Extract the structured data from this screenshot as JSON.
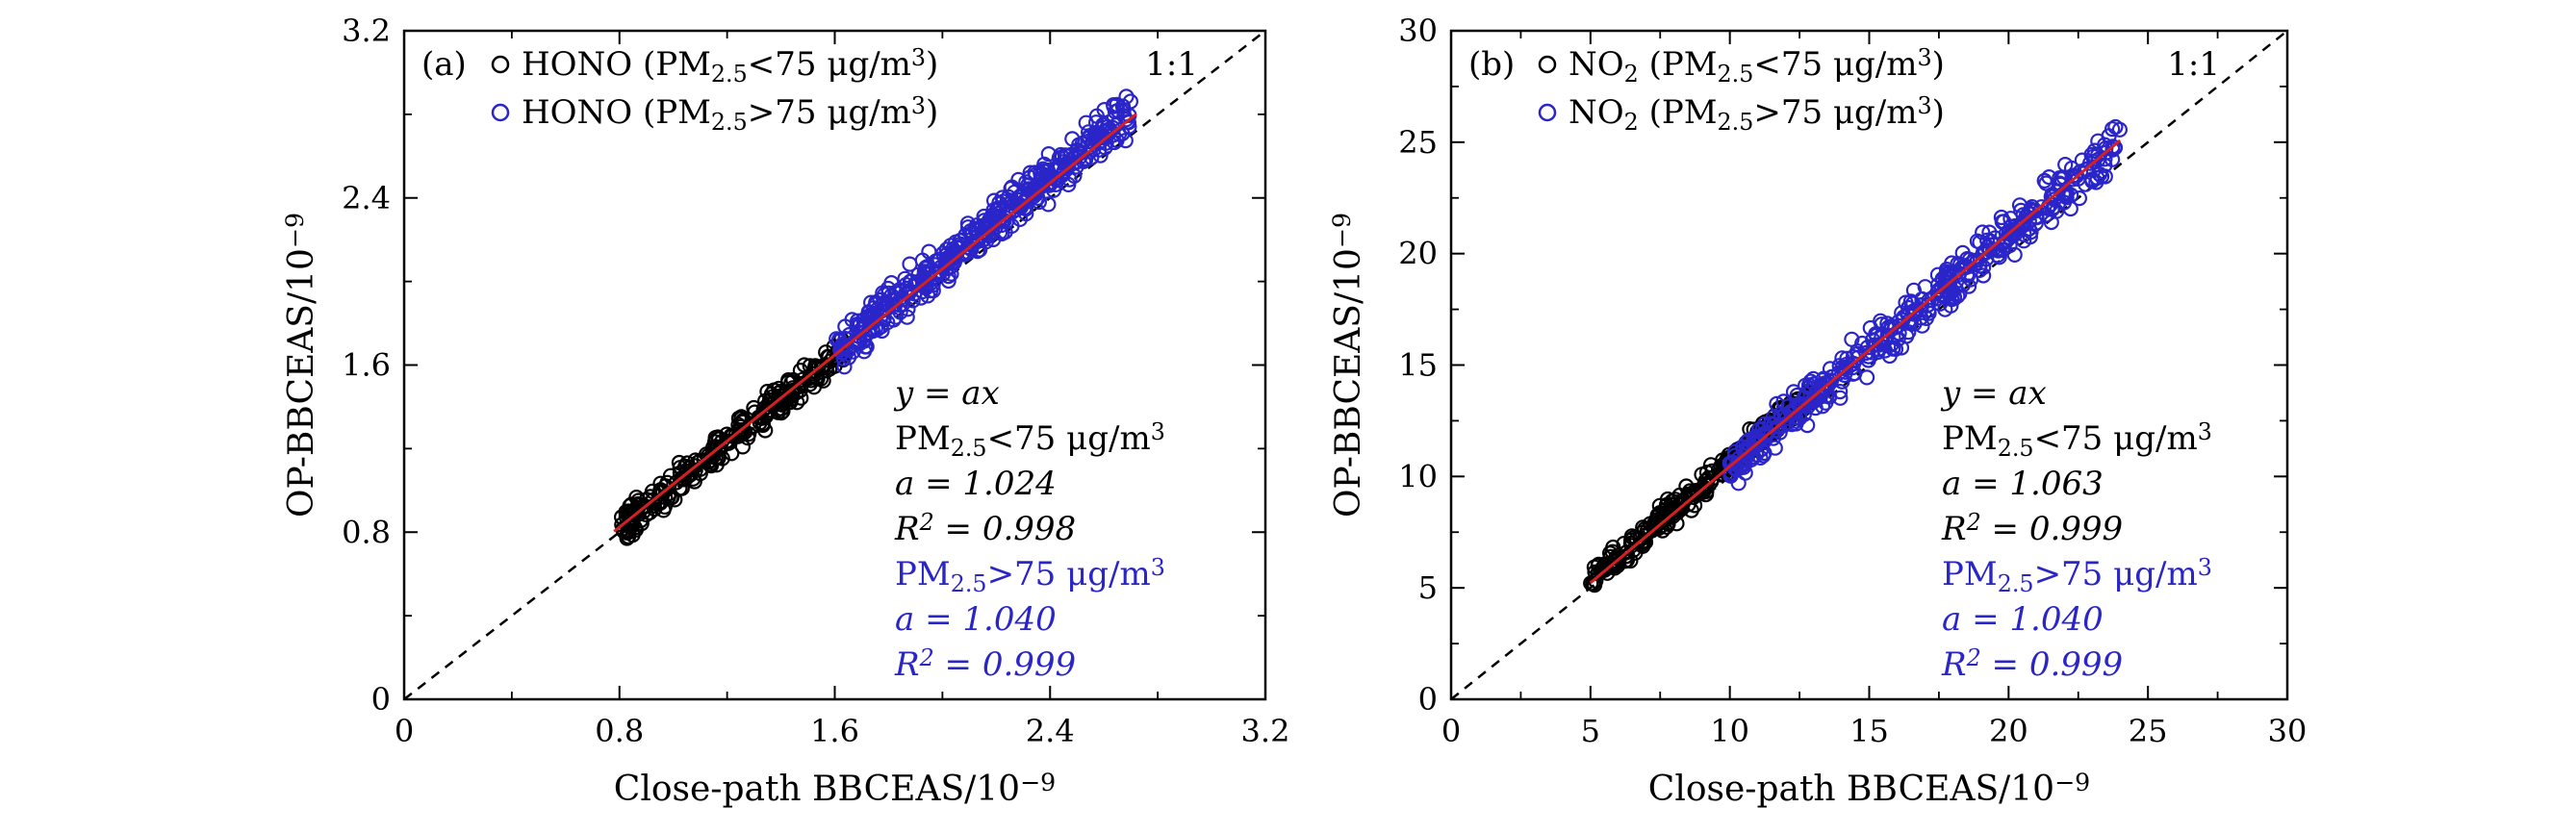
{
  "chart_data": [
    {
      "type": "scatter",
      "panel_label": "(a)",
      "xlabel": "Close-path BBCEAS/10",
      "ylabel": "OP-BBCEAS/10",
      "label_exponent": "−9",
      "xlim": [
        0,
        3.2
      ],
      "ylim": [
        0,
        3.2
      ],
      "xticks": [
        "0",
        "0.8",
        "1.6",
        "2.4",
        "3.2"
      ],
      "yticks": [
        "0",
        "0.8",
        "1.6",
        "2.4",
        "3.2"
      ],
      "tick_values": [
        0,
        0.8,
        1.6,
        2.4,
        3.2
      ],
      "ref_line_label": "1:1",
      "legend_placement": "top-left",
      "legend": [
        {
          "species": "HONO",
          "text": "(PM",
          "sub": "2.5",
          "rel": "<75 μg/m",
          "sup": "3",
          "close": ")",
          "color": "#000000"
        },
        {
          "species": "HONO",
          "text": "(PM",
          "sub": "2.5",
          "rel": ">75 μg/m",
          "sup": "3",
          "close": ")",
          "color": "#2a25c9"
        }
      ],
      "series": [
        {
          "name": "HONO (PM2.5<75 μg/m3)",
          "color": "#000000",
          "slope": 1.024,
          "x_range": [
            0.8,
            1.65
          ],
          "spread": 0.035
        },
        {
          "name": "HONO (PM2.5>75 μg/m3)",
          "color": "#2a25c9",
          "slope": 1.04,
          "x_range": [
            1.6,
            2.7
          ],
          "spread": 0.05
        }
      ],
      "fit_line": {
        "color": "#d62020",
        "slope": 1.03,
        "x_range": [
          0.78,
          2.72
        ]
      },
      "annotation": [
        {
          "text": "y = ax",
          "color": "#000000"
        },
        {
          "text": "PM",
          "sub": "2.5",
          "rest": "<75 μg/m",
          "sup": "3",
          "color": "#000000"
        },
        {
          "text": "a = 1.024",
          "color": "#000000"
        },
        {
          "text": "R",
          "sup": "2",
          "rest": " = 0.998",
          "color": "#000000"
        },
        {
          "text": "PM",
          "sub": "2.5",
          "rest": ">75 μg/m",
          "sup": "3",
          "color": "#2a25c9"
        },
        {
          "text": "a = 1.040",
          "color": "#2a25c9"
        },
        {
          "text": "R",
          "sup": "2",
          "rest": " = 0.999",
          "color": "#2a25c9"
        }
      ]
    },
    {
      "type": "scatter",
      "panel_label": "(b)",
      "xlabel": "Close-path  BBCEAS/10",
      "ylabel": "OP-BBCEAS/10",
      "label_exponent": "−9",
      "xlim": [
        0,
        30
      ],
      "ylim": [
        0,
        30
      ],
      "xticks": [
        "0",
        "5",
        "10",
        "15",
        "20",
        "25",
        "30"
      ],
      "yticks": [
        "0",
        "5",
        "10",
        "15",
        "20",
        "25",
        "30"
      ],
      "tick_values": [
        0,
        5,
        10,
        15,
        20,
        25,
        30
      ],
      "ref_line_label": "1:1",
      "legend_placement": "top-left",
      "legend": [
        {
          "species": "NO",
          "species_sub": "2",
          "text": "(PM",
          "sub": "2.5",
          "rel": "<75 μg/m",
          "sup": "3",
          "close": ")",
          "color": "#000000"
        },
        {
          "species": "NO",
          "species_sub": "2",
          "text": "(PM",
          "sub": "2.5",
          "rel": ">75 μg/m",
          "sup": "3",
          "close": ")",
          "color": "#2a25c9"
        }
      ],
      "series": [
        {
          "name": "NO2 (PM2.5<75 μg/m3)",
          "color": "#000000",
          "slope": 1.063,
          "x_range": [
            5.0,
            13.0
          ],
          "spread": 0.3
        },
        {
          "name": "NO2 (PM2.5>75 μg/m3)",
          "color": "#2a25c9",
          "slope": 1.04,
          "x_range": [
            10.0,
            24.0
          ],
          "spread": 0.5
        }
      ],
      "fit_line": {
        "color": "#d62020",
        "slope": 1.045,
        "x_range": [
          5.0,
          24.0
        ]
      },
      "annotation": [
        {
          "text": "y = ax",
          "color": "#000000"
        },
        {
          "text": "PM",
          "sub": "2.5",
          "rest": "<75 μg/m",
          "sup": "3",
          "color": "#000000"
        },
        {
          "text": "a = 1.063",
          "color": "#000000"
        },
        {
          "text": "R",
          "sup": "2",
          "rest": " = 0.999",
          "color": "#000000"
        },
        {
          "text": "PM",
          "sub": "2.5",
          "rest": ">75 μg/m",
          "sup": "3",
          "color": "#2a25c9"
        },
        {
          "text": "a = 1.040",
          "color": "#2a25c9"
        },
        {
          "text": "R",
          "sup": "2",
          "rest": " = 0.999",
          "color": "#2a25c9"
        }
      ]
    }
  ]
}
